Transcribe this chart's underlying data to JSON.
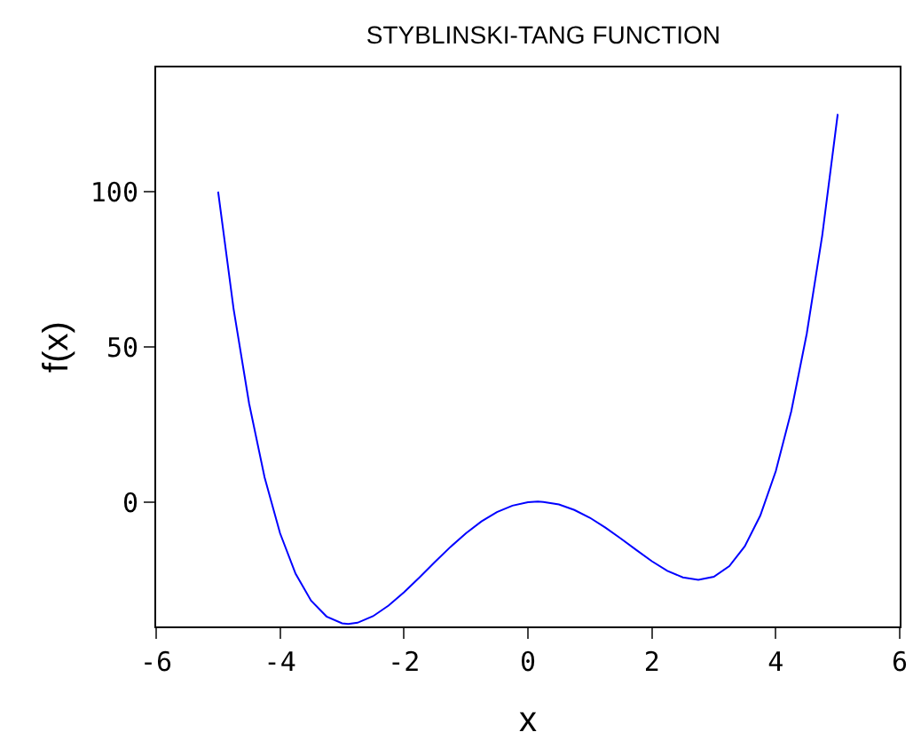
{
  "chart_data": {
    "type": "line",
    "title": "STYBLINSKI-TANG FUNCTION",
    "xlabel": "x",
    "ylabel": "f(x)",
    "x": [
      -5,
      -4.75,
      -4.5,
      -4.25,
      -4,
      -3.75,
      -3.5,
      -3.25,
      -3,
      -2.9,
      -2.75,
      -2.5,
      -2.25,
      -2,
      -1.75,
      -1.5,
      -1.25,
      -1,
      -0.75,
      -0.5,
      -0.25,
      0,
      0.16,
      0.25,
      0.5,
      0.75,
      1,
      1.25,
      1.5,
      1.75,
      2,
      2.25,
      2.5,
      2.75,
      3,
      3.25,
      3.5,
      3.75,
      4,
      4.25,
      4.5,
      4.75,
      5
    ],
    "series": [
      {
        "color": "#0000ff",
        "values": [
          100,
          62.2,
          31.8,
          8,
          -10,
          -23,
          -31.7,
          -36.8,
          -39,
          -39.2,
          -38.8,
          -36.7,
          -33.3,
          -29,
          -24.2,
          -19.2,
          -14.4,
          -10,
          -6.2,
          -3.2,
          -1.1,
          0,
          0.2,
          0.1,
          -0.7,
          -2.5,
          -5,
          -8.2,
          -11.7,
          -15.4,
          -19,
          -22.1,
          -24.2,
          -25,
          -24,
          -20.6,
          -14.2,
          -4.3,
          10,
          29.3,
          54.3,
          85.9,
          125
        ]
      }
    ],
    "xlim": [
      -6,
      6
    ],
    "xticks": [
      -6,
      -4,
      -2,
      0,
      2,
      4,
      6
    ],
    "ylim": [
      -40,
      140
    ],
    "yticks": [
      0,
      50,
      100
    ],
    "grid": false,
    "line_style": "solid",
    "marker": "none"
  }
}
